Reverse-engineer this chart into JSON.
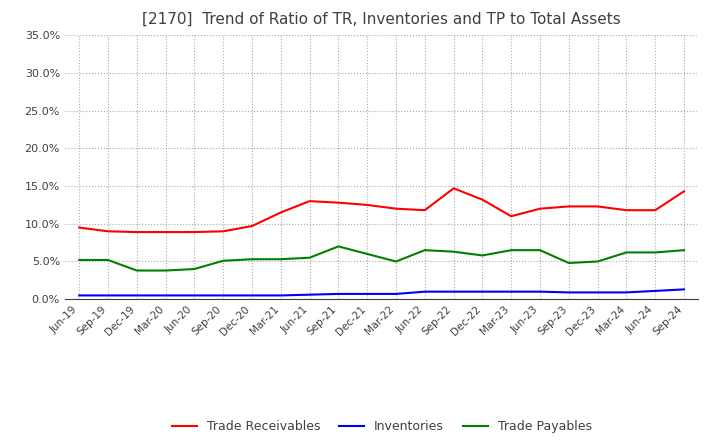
{
  "title": "[2170]  Trend of Ratio of TR, Inventories and TP to Total Assets",
  "title_color": "#404040",
  "title_fontsize": 11,
  "x_labels": [
    "Jun-19",
    "Sep-19",
    "Dec-19",
    "Mar-20",
    "Jun-20",
    "Sep-20",
    "Dec-20",
    "Mar-21",
    "Jun-21",
    "Sep-21",
    "Dec-21",
    "Mar-22",
    "Jun-22",
    "Sep-22",
    "Dec-22",
    "Mar-23",
    "Jun-23",
    "Sep-23",
    "Dec-23",
    "Mar-24",
    "Jun-24",
    "Sep-24"
  ],
  "trade_receivables": [
    9.5,
    9.0,
    8.9,
    8.9,
    8.9,
    9.0,
    9.7,
    11.5,
    13.0,
    12.8,
    12.5,
    12.0,
    11.8,
    14.7,
    13.2,
    11.0,
    12.0,
    12.3,
    12.3,
    11.8,
    11.8,
    14.3
  ],
  "inventories": [
    0.5,
    0.5,
    0.5,
    0.5,
    0.5,
    0.5,
    0.5,
    0.5,
    0.6,
    0.7,
    0.7,
    0.7,
    1.0,
    1.0,
    1.0,
    1.0,
    1.0,
    0.9,
    0.9,
    0.9,
    1.1,
    1.3
  ],
  "trade_payables": [
    5.2,
    5.2,
    3.8,
    3.8,
    4.0,
    5.1,
    5.3,
    5.3,
    5.5,
    7.0,
    6.0,
    5.0,
    6.5,
    6.3,
    5.8,
    6.5,
    6.5,
    4.8,
    5.0,
    6.2,
    6.2,
    6.5
  ],
  "tr_color": "#ff0000",
  "inv_color": "#0000ff",
  "tp_color": "#008000",
  "ylim": [
    0.0,
    35.0
  ],
  "ytick_step": 5.0,
  "background_color": "#ffffff",
  "plot_bg_color": "#ffffff",
  "grid_color": "#aaaaaa",
  "legend_labels": [
    "Trade Receivables",
    "Inventories",
    "Trade Payables"
  ]
}
